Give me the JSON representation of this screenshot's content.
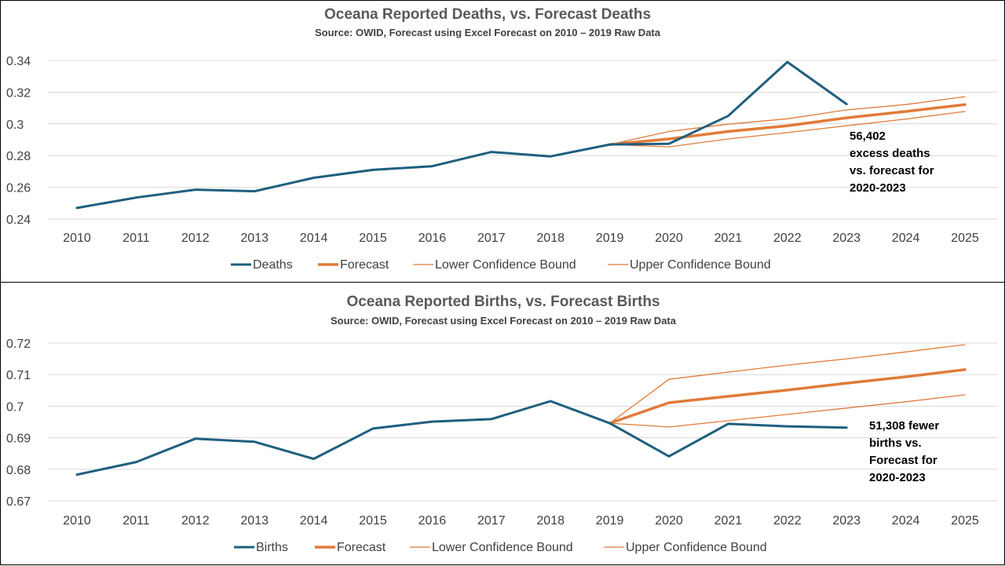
{
  "colors": {
    "actual": "#1f5f7f",
    "forecast": "#e07b39",
    "bound": "#e07b39",
    "grid": "#d9d9d9"
  },
  "chart_data": [
    {
      "type": "line",
      "title": "Oceana Reported Deaths, vs. Forecast Deaths",
      "subtitle": "Source: OWID, Forecast using Excel Forecast on 2010 – 2019 Raw Data",
      "x": [
        2010,
        2011,
        2012,
        2013,
        2014,
        2015,
        2016,
        2017,
        2018,
        2019,
        2020,
        2021,
        2022,
        2023,
        2024,
        2025
      ],
      "yticks": [
        "0.24",
        "0.26",
        "0.28",
        "0.3",
        "0.32",
        "0.34"
      ],
      "ylim": [
        0.24,
        0.34
      ],
      "grid": true,
      "legend_position": "bottom",
      "series": [
        {
          "name": "Deaths",
          "x": [
            2010,
            2011,
            2012,
            2013,
            2014,
            2015,
            2016,
            2017,
            2018,
            2019,
            2020,
            2021,
            2022,
            2023
          ],
          "values": [
            0.247,
            0.2535,
            0.2585,
            0.2575,
            0.266,
            0.271,
            0.2733,
            0.2823,
            0.2795,
            0.287,
            0.2875,
            0.305,
            0.339,
            0.3125
          ]
        },
        {
          "name": "Forecast",
          "x": [
            2019,
            2020,
            2021,
            2022,
            2023,
            2024,
            2025
          ],
          "values": [
            0.287,
            0.2905,
            0.2952,
            0.2988,
            0.3038,
            0.3078,
            0.3122
          ]
        },
        {
          "name": "Lower Confidence Bound",
          "x": [
            2019,
            2020,
            2021,
            2022,
            2023,
            2024,
            2025
          ],
          "values": [
            0.287,
            0.2855,
            0.2905,
            0.2945,
            0.2988,
            0.303,
            0.3078
          ]
        },
        {
          "name": "Upper Confidence Bound",
          "x": [
            2019,
            2020,
            2021,
            2022,
            2023,
            2024,
            2025
          ],
          "values": [
            0.287,
            0.2952,
            0.2998,
            0.3032,
            0.3088,
            0.3122,
            0.3172
          ]
        }
      ],
      "annotation": [
        "56,402",
        "excess deaths",
        "vs. forecast for",
        "2020-2023"
      ]
    },
    {
      "type": "line",
      "title": "Oceana Reported Births, vs. Forecast Births",
      "subtitle": "Source: OWID, Forecast using Excel Forecast on 2010 – 2019 Raw Data",
      "x": [
        2010,
        2011,
        2012,
        2013,
        2014,
        2015,
        2016,
        2017,
        2018,
        2019,
        2020,
        2021,
        2022,
        2023,
        2024,
        2025
      ],
      "yticks": [
        "0.67",
        "0.68",
        "0.69",
        "0.7",
        "0.71",
        "0.72"
      ],
      "ylim": [
        0.67,
        0.72
      ],
      "grid": true,
      "legend_position": "bottom",
      "series": [
        {
          "name": "Births",
          "x": [
            2010,
            2011,
            2012,
            2013,
            2014,
            2015,
            2016,
            2017,
            2018,
            2019,
            2020,
            2021,
            2022,
            2023
          ],
          "values": [
            0.6783,
            0.6823,
            0.6897,
            0.6887,
            0.6833,
            0.6929,
            0.6951,
            0.6959,
            0.7016,
            0.6946,
            0.6841,
            0.6944,
            0.6936,
            0.6932
          ]
        },
        {
          "name": "Forecast",
          "x": [
            2019,
            2020,
            2021,
            2022,
            2023,
            2024,
            2025
          ],
          "values": [
            0.6946,
            0.7011,
            0.7031,
            0.7051,
            0.7073,
            0.7093,
            0.7116
          ]
        },
        {
          "name": "Lower Confidence Bound",
          "x": [
            2019,
            2020,
            2021,
            2022,
            2023,
            2024,
            2025
          ],
          "values": [
            0.6946,
            0.6934,
            0.6954,
            0.6974,
            0.6994,
            0.7014,
            0.7036
          ]
        },
        {
          "name": "Upper Confidence Bound",
          "x": [
            2019,
            2020,
            2021,
            2022,
            2023,
            2024,
            2025
          ],
          "values": [
            0.6946,
            0.7085,
            0.7108,
            0.713,
            0.715,
            0.7172,
            0.7195
          ]
        }
      ],
      "annotation": [
        "51,308 fewer",
        "births vs.",
        "Forecast for",
        "2020-2023"
      ]
    }
  ]
}
